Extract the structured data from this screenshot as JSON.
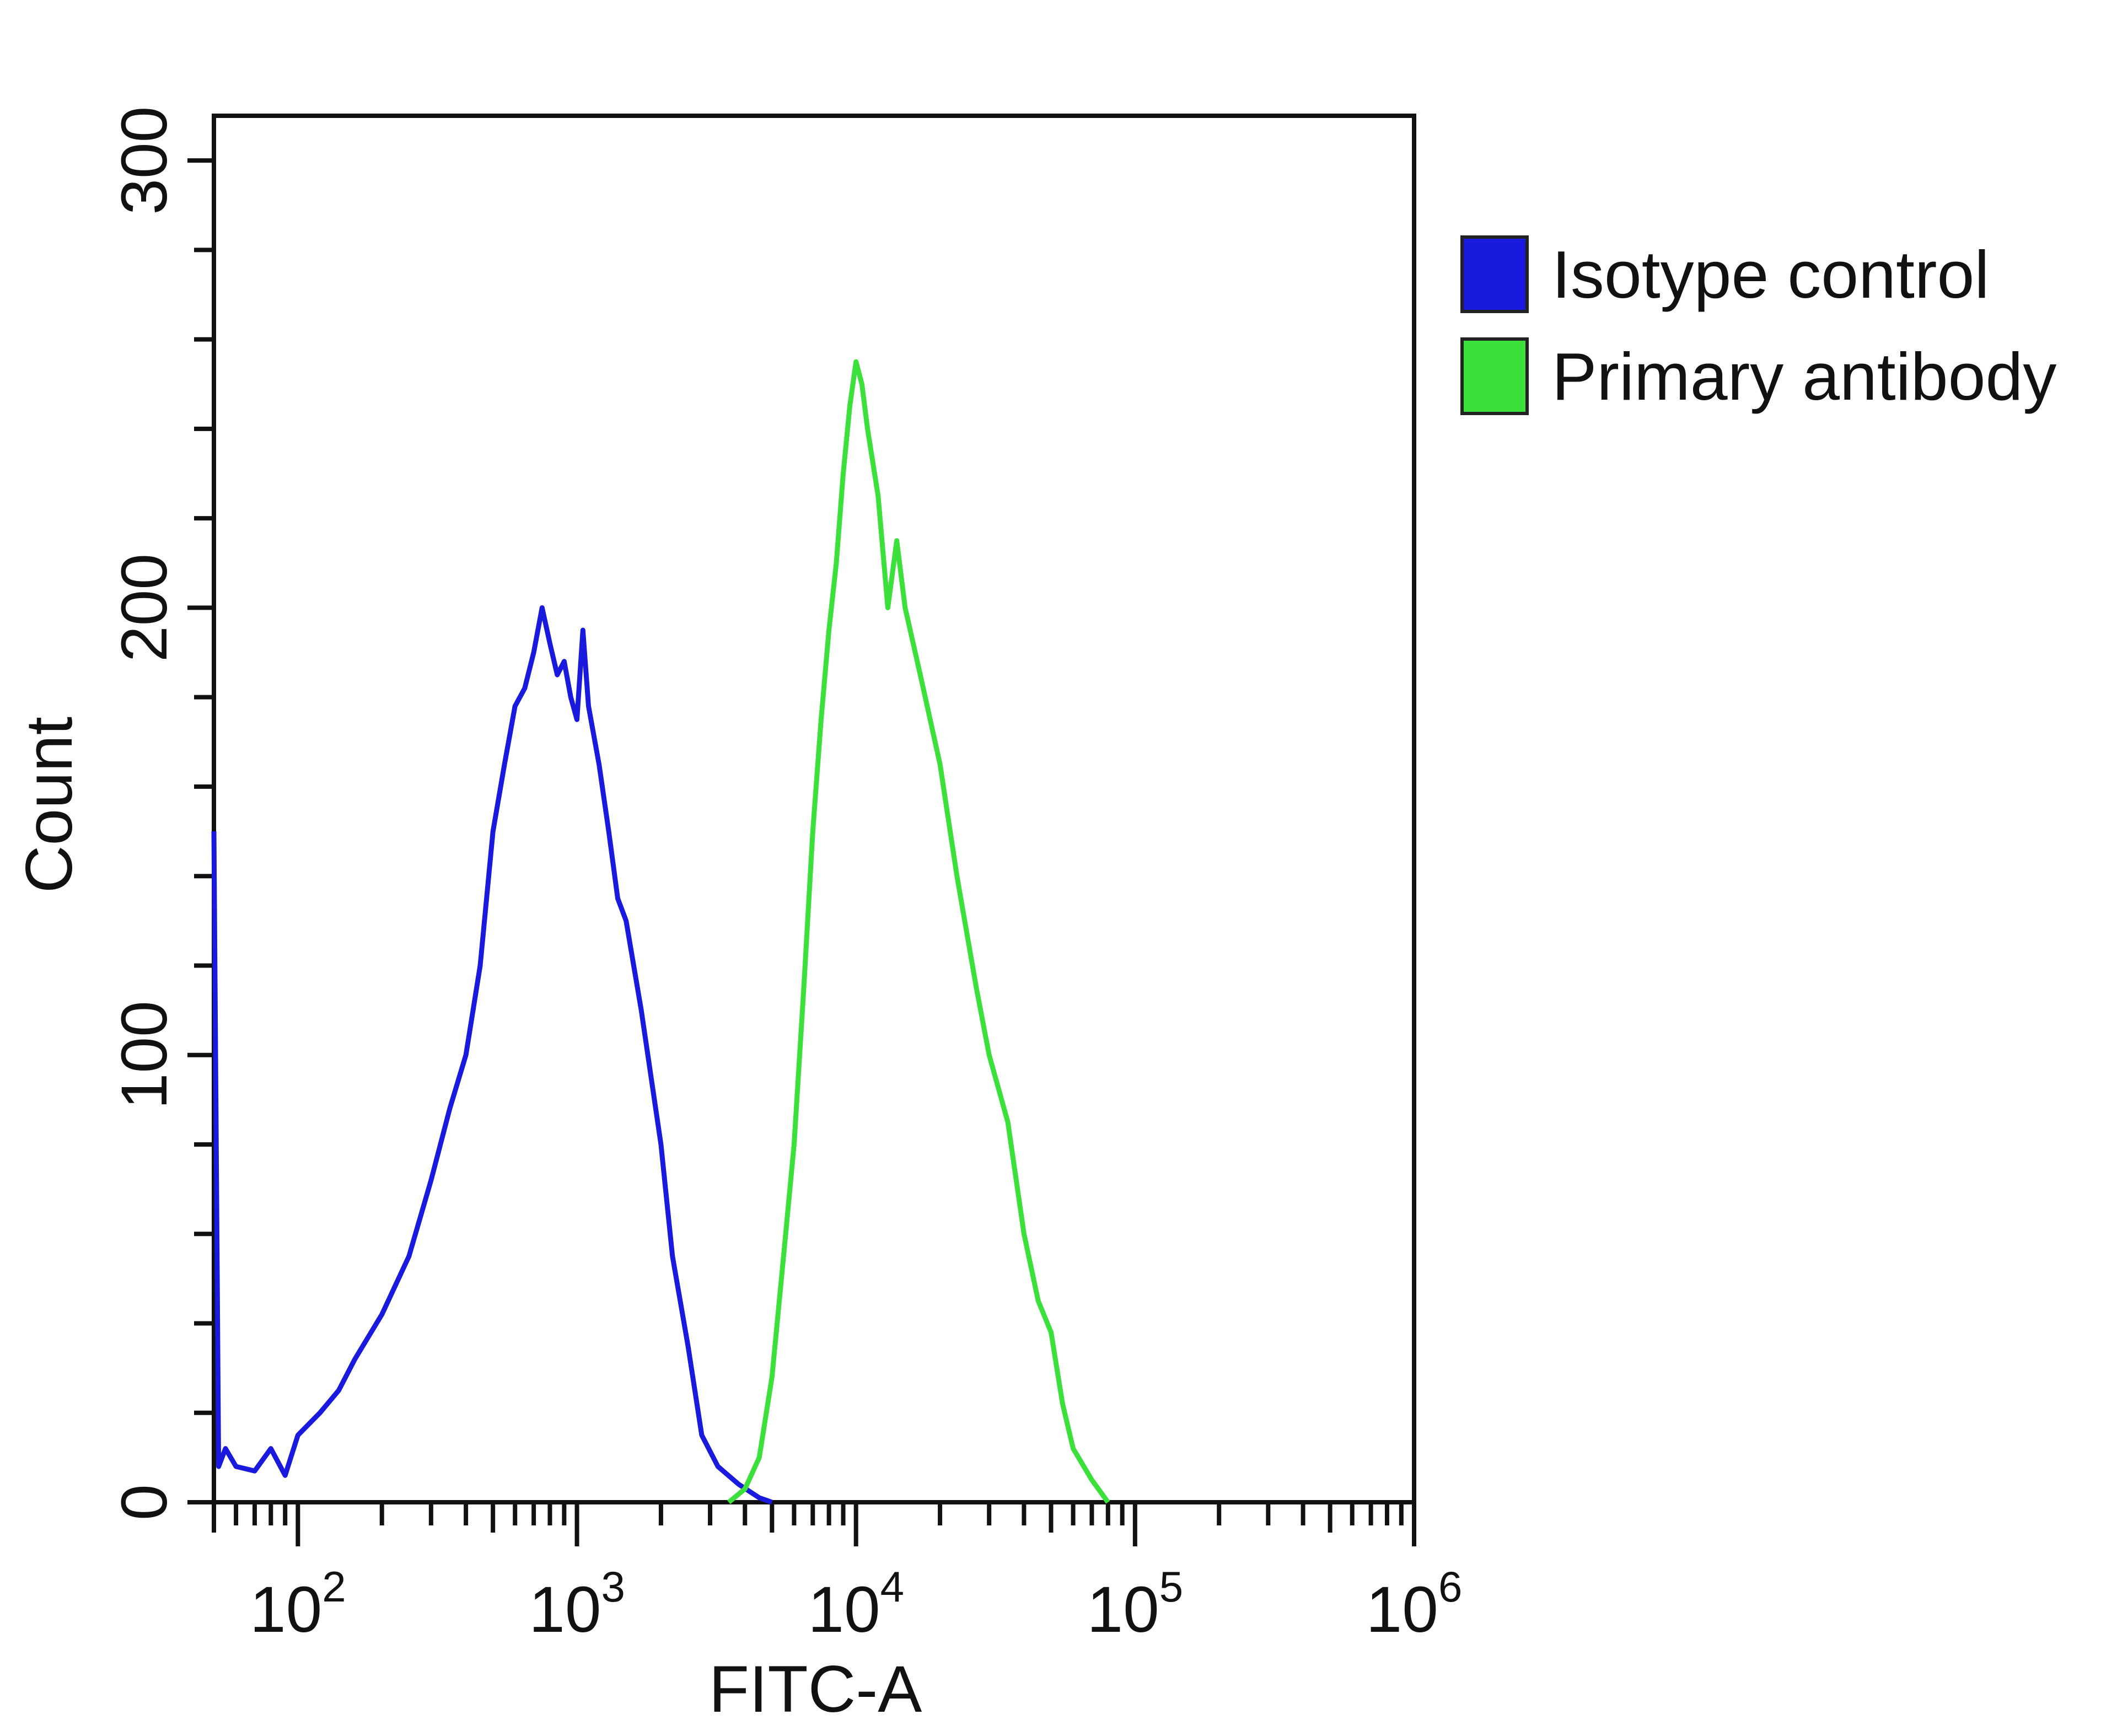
{
  "chart_data": {
    "type": "line",
    "title": "",
    "xlabel": "FITC-A",
    "ylabel": "Count",
    "x_scale": "log",
    "xlim": [
      50,
      1000000
    ],
    "ylim": [
      0,
      310
    ],
    "grid": false,
    "legend_position": "top-right outside plot",
    "x_ticks": [
      {
        "value": 100,
        "base": "10",
        "exp": "2"
      },
      {
        "value": 1000,
        "base": "10",
        "exp": "3"
      },
      {
        "value": 10000,
        "base": "10",
        "exp": "4"
      },
      {
        "value": 100000,
        "base": "10",
        "exp": "5"
      },
      {
        "value": 1000000,
        "base": "10",
        "exp": "6"
      }
    ],
    "y_ticks": [
      {
        "value": 0,
        "label": "0"
      },
      {
        "value": 100,
        "label": "100"
      },
      {
        "value": 200,
        "label": "200"
      },
      {
        "value": 300,
        "label": "300"
      }
    ],
    "series": [
      {
        "name": "Isotype control",
        "color": "#1a1adf",
        "points": [
          [
            50,
            150
          ],
          [
            52,
            8
          ],
          [
            55,
            12
          ],
          [
            60,
            8
          ],
          [
            70,
            7
          ],
          [
            80,
            12
          ],
          [
            90,
            6
          ],
          [
            100,
            15
          ],
          [
            120,
            20
          ],
          [
            140,
            25
          ],
          [
            160,
            32
          ],
          [
            200,
            42
          ],
          [
            250,
            55
          ],
          [
            300,
            72
          ],
          [
            350,
            88
          ],
          [
            400,
            100
          ],
          [
            450,
            120
          ],
          [
            500,
            150
          ],
          [
            550,
            165
          ],
          [
            600,
            178
          ],
          [
            650,
            182
          ],
          [
            700,
            190
          ],
          [
            750,
            200
          ],
          [
            800,
            192
          ],
          [
            850,
            185
          ],
          [
            900,
            188
          ],
          [
            950,
            180
          ],
          [
            1000,
            175
          ],
          [
            1050,
            195
          ],
          [
            1100,
            178
          ],
          [
            1200,
            165
          ],
          [
            1300,
            150
          ],
          [
            1400,
            135
          ],
          [
            1500,
            130
          ],
          [
            1700,
            110
          ],
          [
            2000,
            80
          ],
          [
            2200,
            55
          ],
          [
            2500,
            35
          ],
          [
            2800,
            15
          ],
          [
            3200,
            8
          ],
          [
            3800,
            4
          ],
          [
            4500,
            1
          ],
          [
            5000,
            0
          ]
        ]
      },
      {
        "name": "Primary antibody",
        "color": "#3be03b",
        "points": [
          [
            3500,
            0
          ],
          [
            4000,
            3
          ],
          [
            4500,
            10
          ],
          [
            5000,
            28
          ],
          [
            5500,
            55
          ],
          [
            6000,
            80
          ],
          [
            6500,
            115
          ],
          [
            7000,
            150
          ],
          [
            7500,
            175
          ],
          [
            8000,
            195
          ],
          [
            8500,
            210
          ],
          [
            9000,
            230
          ],
          [
            9500,
            245
          ],
          [
            10000,
            255
          ],
          [
            10500,
            250
          ],
          [
            11000,
            240
          ],
          [
            12000,
            225
          ],
          [
            13000,
            200
          ],
          [
            14000,
            215
          ],
          [
            15000,
            200
          ],
          [
            17000,
            185
          ],
          [
            20000,
            165
          ],
          [
            23000,
            140
          ],
          [
            27000,
            115
          ],
          [
            30000,
            100
          ],
          [
            35000,
            85
          ],
          [
            40000,
            60
          ],
          [
            45000,
            45
          ],
          [
            50000,
            38
          ],
          [
            55000,
            22
          ],
          [
            60000,
            12
          ],
          [
            70000,
            5
          ],
          [
            80000,
            0
          ]
        ]
      }
    ]
  }
}
